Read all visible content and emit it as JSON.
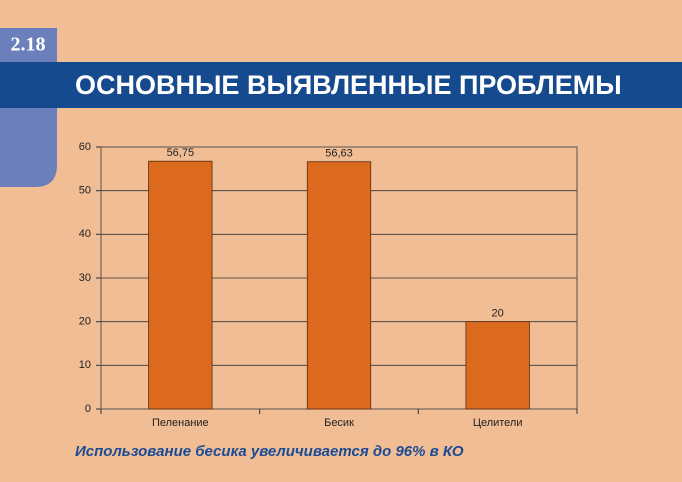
{
  "slide_number": "2.18",
  "chart_data": {
    "type": "bar",
    "title": "ОСНОВНЫЕ ВЫЯВЛЕННЫЕ ПРОБЛЕМЫ",
    "categories": [
      "Пеленание",
      "Бесик",
      "Целители"
    ],
    "values": [
      56.75,
      56.63,
      20
    ],
    "value_labels": [
      "56,75",
      "56,63",
      "20"
    ],
    "color": "#db6a1e",
    "ylim": [
      0,
      60
    ],
    "yticks": [
      0,
      10,
      20,
      30,
      40,
      50,
      60
    ],
    "grid": true
  },
  "footer": "Использование бесика увеличивается до 96% в КО"
}
